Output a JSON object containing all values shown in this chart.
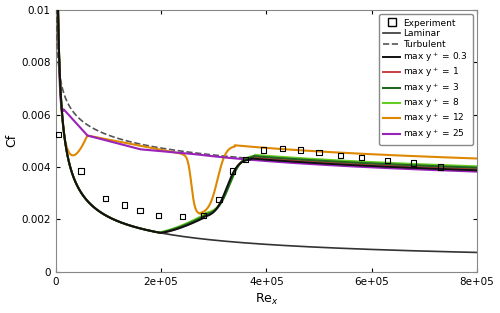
{
  "xlim": [
    0,
    800000
  ],
  "ylim": [
    0,
    0.01
  ],
  "bg_color": "#ffffff",
  "experiment_color": "#000000",
  "laminar_color": "#333333",
  "turbulent_color": "#555555",
  "yp03_color": "#111111",
  "yp1_color": "#c84040",
  "yp3_color": "#226622",
  "yp8_color": "#66cc22",
  "yp12_color": "#dd8800",
  "yp25_color": "#9922bb",
  "exp_rex": [
    6000,
    48000,
    95000,
    130000,
    160000,
    195000,
    240000,
    280000,
    310000,
    335000,
    360000,
    395000,
    430000,
    465000,
    500000,
    540000,
    580000,
    630000,
    680000,
    730000
  ],
  "exp_cf": [
    0.00525,
    0.00385,
    0.0028,
    0.00255,
    0.00235,
    0.00215,
    0.0021,
    0.00215,
    0.00275,
    0.00385,
    0.0043,
    0.00465,
    0.0047,
    0.00465,
    0.00455,
    0.00445,
    0.00435,
    0.00425,
    0.00415,
    0.004
  ]
}
